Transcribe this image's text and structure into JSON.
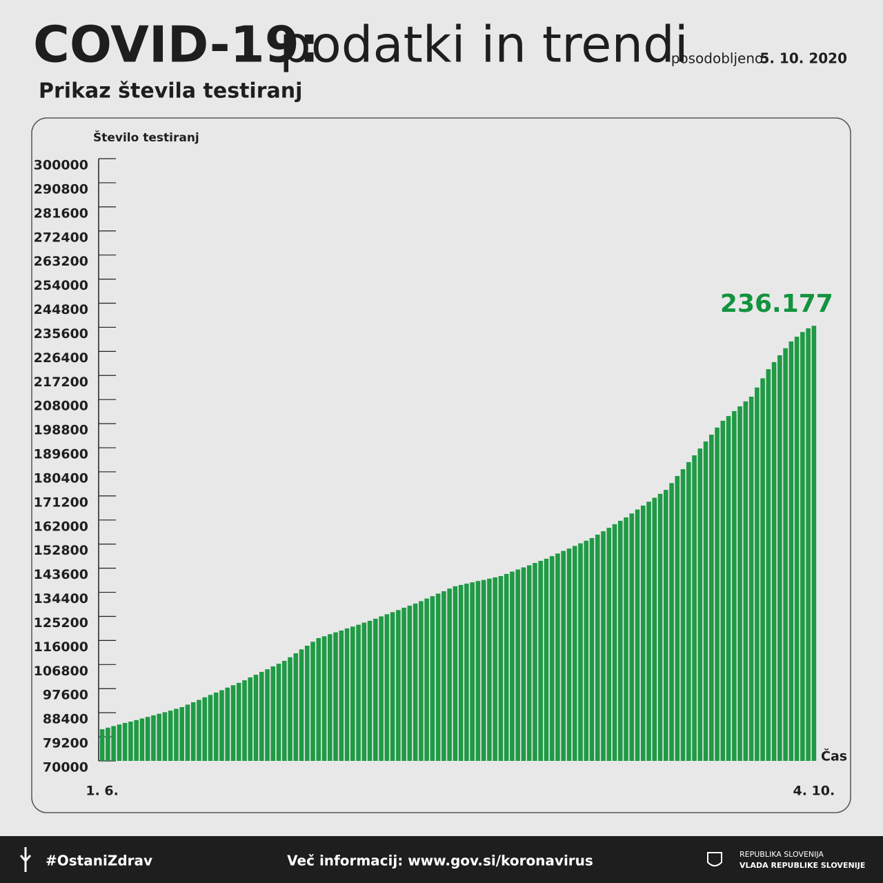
{
  "header": {
    "title_bold": "COVID-19:",
    "title_light": "podatki in trendi",
    "updated_label": "posodobljeno:",
    "updated_date": "5. 10. 2020"
  },
  "chart_data": {
    "type": "bar",
    "title": "Prikaz števila testiranj",
    "y_label": "Število testiranj",
    "x_label": "Čas",
    "color": "#1f9a45",
    "label_color": "#12933f",
    "categories": [
      "1. 6.",
      null,
      null,
      null,
      null,
      null,
      null,
      null,
      null,
      null,
      null,
      null,
      null,
      null,
      null,
      null,
      null,
      null,
      null,
      null,
      null,
      null,
      null,
      null,
      null,
      null,
      null,
      null,
      null,
      null,
      null,
      null,
      null,
      null,
      null,
      null,
      null,
      null,
      null,
      null,
      null,
      null,
      null,
      null,
      null,
      null,
      null,
      null,
      null,
      null,
      null,
      null,
      null,
      null,
      null,
      null,
      null,
      null,
      null,
      null,
      null,
      null,
      null,
      null,
      null,
      null,
      null,
      null,
      null,
      null,
      null,
      null,
      null,
      null,
      null,
      null,
      null,
      null,
      null,
      null,
      null,
      null,
      null,
      null,
      null,
      null,
      null,
      null,
      null,
      null,
      null,
      null,
      null,
      null,
      null,
      null,
      null,
      null,
      null,
      null,
      null,
      null,
      null,
      null,
      null,
      null,
      null,
      null,
      null,
      null,
      null,
      null,
      null,
      null,
      null,
      null,
      null,
      null,
      null,
      null,
      null,
      null,
      null,
      null,
      null,
      "4. 10."
    ],
    "values": [
      82100,
      82700,
      83300,
      83900,
      84500,
      85000,
      85600,
      86200,
      86800,
      87400,
      88000,
      88600,
      89200,
      89900,
      90550,
      91500,
      92400,
      93300,
      94300,
      95200,
      96100,
      97000,
      98000,
      98900,
      99800,
      100800,
      101900,
      102900,
      104000,
      105000,
      106100,
      107100,
      108200,
      109600,
      111100,
      112600,
      114000,
      115500,
      116900,
      117600,
      118400,
      119100,
      119800,
      120600,
      121300,
      122000,
      122800,
      123500,
      124300,
      125200,
      126000,
      126800,
      127600,
      128500,
      129300,
      130100,
      131000,
      132000,
      132900,
      133900,
      134800,
      135800,
      136700,
      137200,
      137700,
      138200,
      138700,
      139100,
      139600,
      140100,
      140600,
      141400,
      142300,
      143100,
      143900,
      144700,
      145600,
      146400,
      147200,
      148200,
      149200,
      150200,
      151100,
      152100,
      153100,
      154100,
      155100,
      156400,
      157700,
      159000,
      160400,
      161700,
      163000,
      164500,
      166000,
      167500,
      169000,
      170500,
      172000,
      173500,
      176100,
      178800,
      181400,
      184100,
      186700,
      189300,
      192000,
      194600,
      197300,
      199900,
      201700,
      203600,
      205400,
      207300,
      209100,
      212600,
      216100,
      219600,
      222300,
      224900,
      227600,
      230200,
      232000,
      233800,
      235200,
      236177
    ],
    "value_labels": [
      null,
      null,
      null,
      null,
      null,
      null,
      null,
      null,
      null,
      null,
      null,
      null,
      null,
      null,
      null,
      null,
      null,
      null,
      null,
      null,
      null,
      null,
      null,
      null,
      null,
      null,
      null,
      null,
      null,
      null,
      null,
      null,
      null,
      null,
      null,
      null,
      null,
      null,
      null,
      null,
      null,
      null,
      null,
      null,
      null,
      null,
      null,
      null,
      null,
      null,
      null,
      null,
      null,
      null,
      null,
      null,
      null,
      null,
      null,
      null,
      null,
      null,
      null,
      null,
      null,
      null,
      null,
      null,
      null,
      null,
      null,
      null,
      null,
      null,
      null,
      null,
      null,
      null,
      null,
      null,
      null,
      null,
      null,
      null,
      null,
      null,
      null,
      null,
      null,
      null,
      null,
      null,
      null,
      null,
      null,
      null,
      null,
      null,
      null,
      null,
      null,
      null,
      null,
      null,
      null,
      null,
      null,
      null,
      null,
      null,
      null,
      null,
      null,
      null,
      null,
      null,
      null,
      null,
      null,
      null,
      null,
      null,
      null,
      null,
      null,
      "236.177"
    ],
    "ylim": [
      70000,
      300000
    ],
    "yticks": [
      70000,
      79200,
      88400,
      97600,
      106800,
      116000,
      125200,
      134400,
      143600,
      152800,
      162000,
      171200,
      180400,
      189600,
      198800,
      208000,
      217200,
      226400,
      235600,
      244800,
      254000,
      263200,
      272400,
      281600,
      290800,
      300000
    ]
  },
  "footer": {
    "hashtag": "#OstaniZdrav",
    "info": "Več informacij: www.gov.si/koronavirus",
    "org1": "REPUBLIKA SLOVENIJA",
    "org2": "VLADA REPUBLIKE SLOVENIJE"
  }
}
